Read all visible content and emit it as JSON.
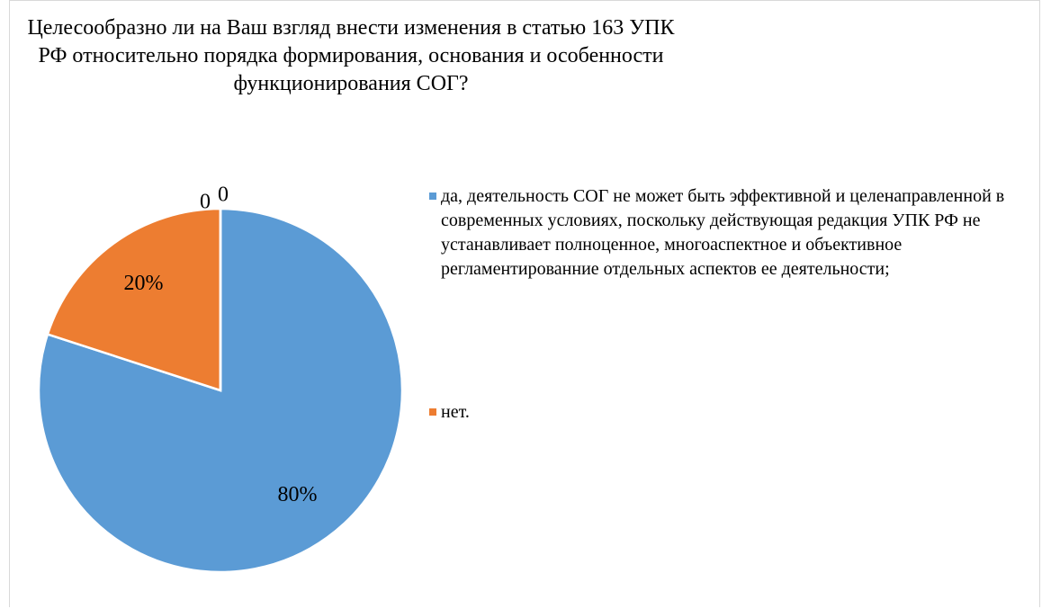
{
  "chart_data": {
    "type": "pie",
    "title": "Целесообразно ли на Ваш взгляд внести изменения в статью 163 УПК РФ относительно порядка формирования, основания и особенности функционирования СОГ?",
    "categories": [
      "да, деятельность СОГ не может быть эффективной и целенаправленной в современных условиях, поскольку действующая редакция УПК РФ не устанавливает полноценное, многоаспектное и объективное регламентированние отдельных аспектов ее деятельности;",
      "нет.",
      null,
      null
    ],
    "values": [
      80,
      20,
      0,
      0
    ],
    "value_labels": [
      "80%",
      "20%",
      "0",
      "0"
    ],
    "colors": [
      "#5b9bd5",
      "#ed7d31",
      "#a5a5a5",
      "#ffc000"
    ],
    "legend": "right"
  }
}
